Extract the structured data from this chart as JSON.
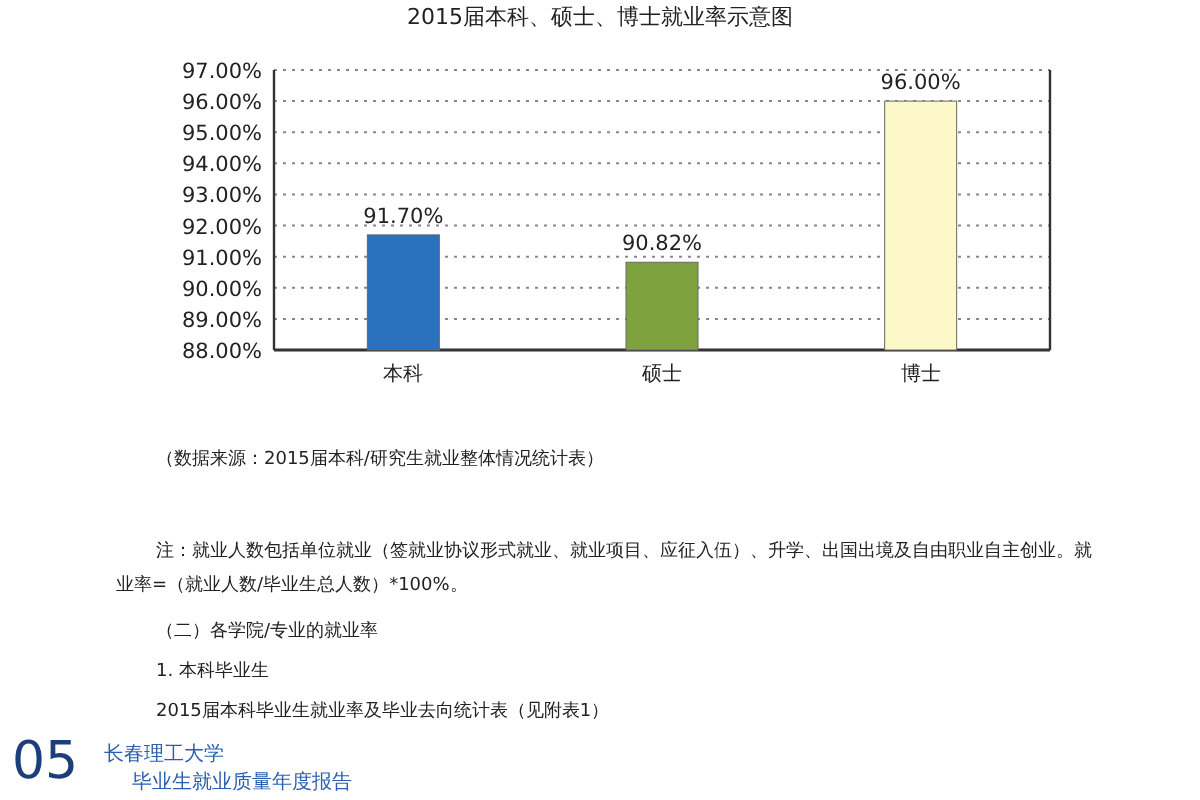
{
  "chart_data": {
    "type": "bar",
    "title": "2015届本科、硕士、博士就业率示意图",
    "categories": [
      "本科",
      "硕士",
      "博士"
    ],
    "values": [
      91.7,
      90.82,
      96.0
    ],
    "colors": [
      "#2a72c0",
      "#7ea23e",
      "#fcf8c8"
    ],
    "value_labels": [
      "91.70%",
      "90.82%",
      "96.00%"
    ],
    "ylim": [
      88,
      97
    ],
    "yticks": [
      {
        "value": 88,
        "label": "88.00%"
      },
      {
        "value": 89,
        "label": "89.00%"
      },
      {
        "value": 90,
        "label": "90.00%"
      },
      {
        "value": 91,
        "label": "91.00%"
      },
      {
        "value": 92,
        "label": "92.00%"
      },
      {
        "value": 93,
        "label": "93.00%"
      },
      {
        "value": 94,
        "label": "94.00%"
      },
      {
        "value": 95,
        "label": "95.00%"
      },
      {
        "value": 96,
        "label": "96.00%"
      },
      {
        "value": 97,
        "label": "97.00%"
      }
    ],
    "grid": "y",
    "annotations": [
      "（数据来源：2015届本科/研究生就业整体情况统计表）",
      "注：就业人数包括单位就业（签就业协议形式就业、就业项目、应征入伍）、升学、出国出境及自由职业自主创业。就业率=（就业人数/毕业生总人数）*100%。",
      "（二）各学院/专业的就业率",
      "1.  本科毕业生",
      "2015届本科毕业生就业率及毕业去向统计表（见附表1）",
      "05",
      "长春理工大学",
      "毕业生就业质量年度报告"
    ]
  }
}
